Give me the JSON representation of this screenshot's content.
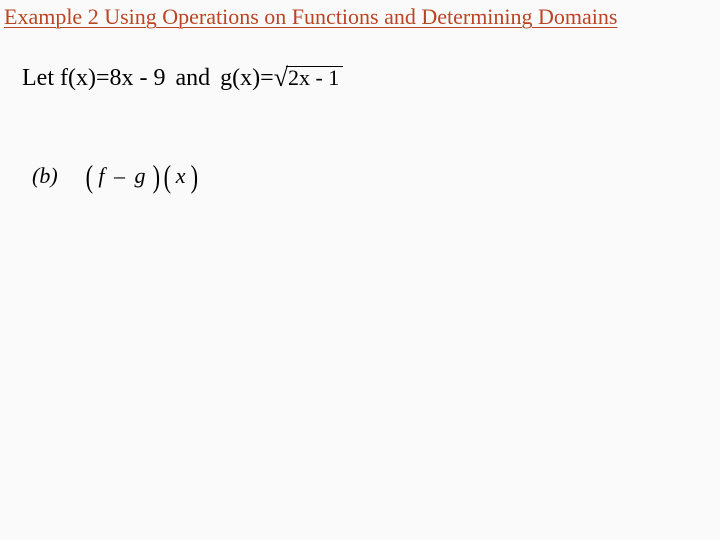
{
  "colors": {
    "title_color": "#bb4422",
    "text_color": "#000000",
    "background": "#fafafa"
  },
  "title": "Example 2 Using Operations on Functions and Determining Domains",
  "given": {
    "let": "Let",
    "f_def_lhs": "f(x)",
    "equals": " = ",
    "f_def_rhs": "8x - 9",
    "and": " and ",
    "g_def_lhs": "g(x)",
    "g_radicand": "2x - 1"
  },
  "problem": {
    "label": "(b)",
    "lparen": "(",
    "rparen": ")",
    "inner_fg_f": "f",
    "inner_fg_minus": " – ",
    "inner_fg_g": "g",
    "x": "x"
  },
  "typography": {
    "title_fontsize": 22,
    "body_fontsize": 24,
    "font_family": "Times New Roman"
  }
}
